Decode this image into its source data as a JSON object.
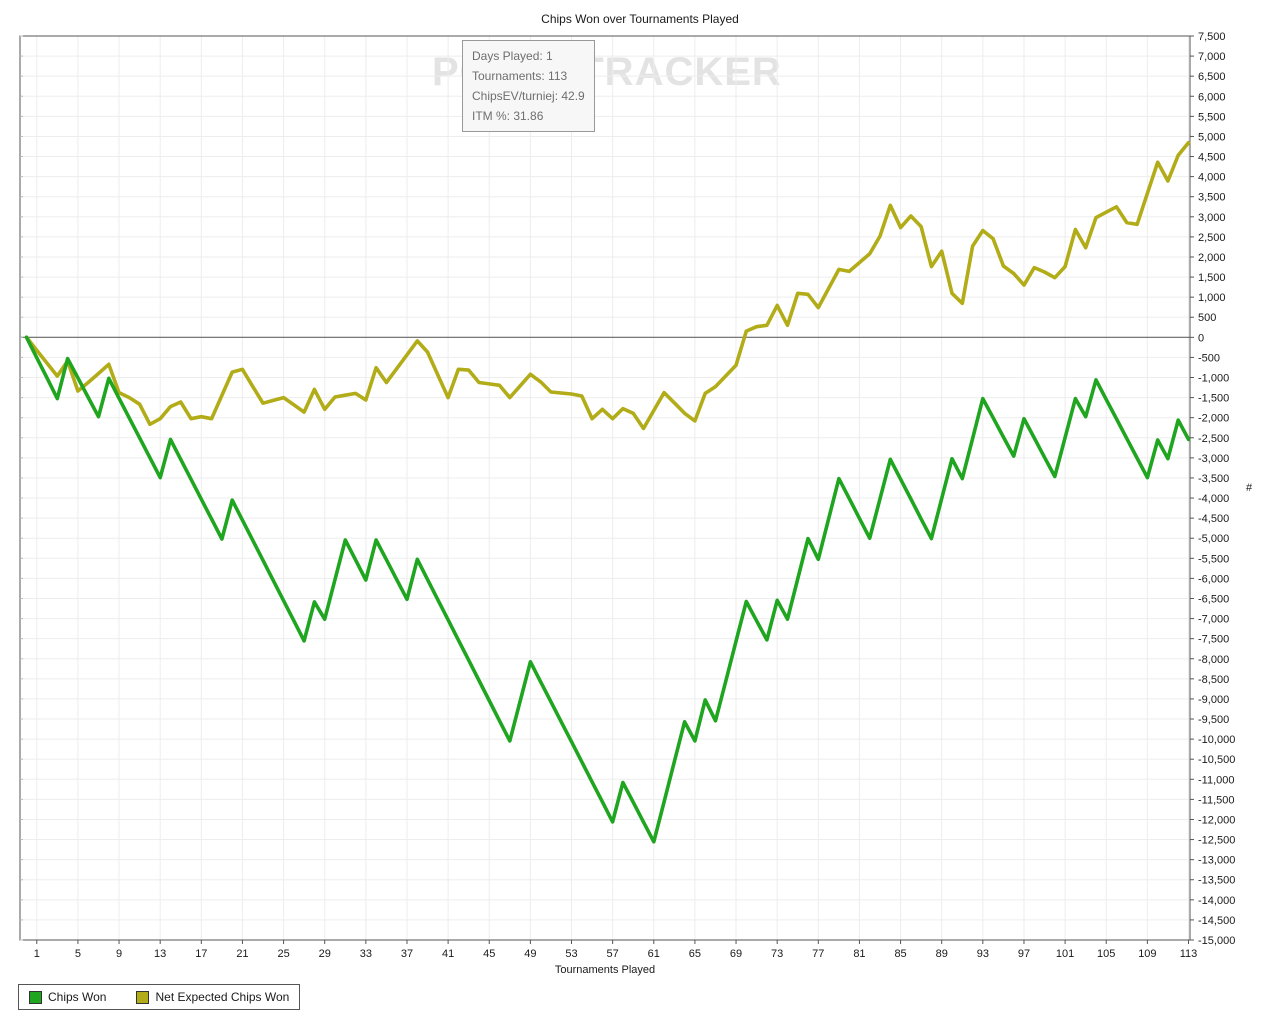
{
  "title": "Chips Won over Tournaments Played",
  "watermark": "POKERTRACKER",
  "tooltip": {
    "lines": [
      "Days Played: 1",
      "Tournaments: 113",
      "ChipsEV/turniej: 42.9",
      "ITM %: 31.86"
    ]
  },
  "axes": {
    "x_label": "Tournaments Played",
    "y_label": "#",
    "x_ticks": [
      1,
      5,
      9,
      13,
      17,
      21,
      25,
      29,
      33,
      37,
      41,
      45,
      49,
      53,
      57,
      61,
      65,
      69,
      73,
      77,
      81,
      85,
      89,
      93,
      97,
      101,
      105,
      109,
      113
    ],
    "y_min": -15000,
    "y_max": 7500,
    "y_step": 500
  },
  "legend": [
    {
      "label": "Chips Won",
      "color": "#1fa51f"
    },
    {
      "label": "Net Expected Chips Won",
      "color": "#b2ac18"
    }
  ],
  "chart_data": {
    "type": "line",
    "title": "Chips Won over Tournaments Played",
    "xlabel": "Tournaments Played",
    "ylabel": "#",
    "xlim": [
      0,
      113
    ],
    "ylim": [
      -15000,
      7500
    ],
    "grid": true,
    "legend_position": "bottom-left",
    "x": [
      0,
      1,
      2,
      3,
      4,
      5,
      6,
      7,
      8,
      9,
      10,
      11,
      12,
      13,
      14,
      15,
      16,
      17,
      18,
      19,
      20,
      21,
      22,
      23,
      24,
      25,
      26,
      27,
      28,
      29,
      30,
      31,
      32,
      33,
      34,
      35,
      36,
      37,
      38,
      39,
      40,
      41,
      42,
      43,
      44,
      45,
      46,
      47,
      48,
      49,
      50,
      51,
      52,
      53,
      54,
      55,
      56,
      57,
      58,
      59,
      60,
      61,
      62,
      63,
      64,
      65,
      66,
      67,
      68,
      69,
      70,
      71,
      72,
      73,
      74,
      75,
      76,
      77,
      78,
      79,
      80,
      81,
      82,
      83,
      84,
      85,
      86,
      87,
      88,
      89,
      90,
      91,
      92,
      93,
      94,
      95,
      96,
      97,
      98,
      99,
      100,
      101,
      102,
      103,
      104,
      105,
      106,
      107,
      108,
      109,
      110,
      111,
      112,
      113
    ],
    "series": [
      {
        "name": "Chips Won",
        "color": "#1fa51f",
        "values": [
          0,
          -510,
          -1015,
          -1525,
          -530,
          -1010,
          -1495,
          -1975,
          -1020,
          -1515,
          -2010,
          -2500,
          -2995,
          -3490,
          -2540,
          -3035,
          -3530,
          -4030,
          -4525,
          -5020,
          -4050,
          -4550,
          -5050,
          -5550,
          -6055,
          -6555,
          -7055,
          -7555,
          -6585,
          -7015,
          -6030,
          -5045,
          -5540,
          -6040,
          -5045,
          -5535,
          -6030,
          -6520,
          -5525,
          -6025,
          -6530,
          -7030,
          -7535,
          -8035,
          -8540,
          -9040,
          -9545,
          -10045,
          -9060,
          -8075,
          -8575,
          -9070,
          -9570,
          -10065,
          -10565,
          -11065,
          -11560,
          -12060,
          -11080,
          -11570,
          -12065,
          -12555,
          -11560,
          -10565,
          -9570,
          -10045,
          -9025,
          -9545,
          -8555,
          -7565,
          -6575,
          -7055,
          -7530,
          -6545,
          -7015,
          -6015,
          -5010,
          -5525,
          -4520,
          -3515,
          -4010,
          -4505,
          -5000,
          -4020,
          -3035,
          -3530,
          -4025,
          -4520,
          -5010,
          -4015,
          -3020,
          -3515,
          -2520,
          -1525,
          -2000,
          -2480,
          -2955,
          -2025,
          -2505,
          -2985,
          -3465,
          -2495,
          -1525,
          -1975,
          -1060,
          -1545,
          -2030,
          -2520,
          -3005,
          -3490,
          -2555,
          -3020,
          -2060,
          -2540
        ]
      },
      {
        "name": "Net Expected Chips Won",
        "color": "#b2ac18",
        "values": [
          0,
          -325,
          -645,
          -965,
          -590,
          -1335,
          -1125,
          -900,
          -670,
          -1375,
          -1500,
          -1665,
          -2165,
          -2025,
          -1725,
          -1610,
          -2025,
          -1975,
          -2025,
          -1445,
          -865,
          -795,
          -1220,
          -1640,
          -1570,
          -1500,
          -1680,
          -1860,
          -1295,
          -1790,
          -1485,
          -1440,
          -1395,
          -1560,
          -755,
          -1125,
          -780,
          -435,
          -90,
          -365,
          -935,
          -1500,
          -795,
          -815,
          -1125,
          -1160,
          -1195,
          -1500,
          -1210,
          -920,
          -1110,
          -1360,
          -1385,
          -1410,
          -1460,
          -2025,
          -1790,
          -2025,
          -1775,
          -1890,
          -2270,
          -1820,
          -1375,
          -1630,
          -1890,
          -2080,
          -1395,
          -1225,
          -960,
          -695,
          155,
          265,
          300,
          795,
          300,
          1095,
          1070,
          740,
          1215,
          1690,
          1640,
          1860,
          2080,
          2520,
          3285,
          2730,
          3020,
          2755,
          1760,
          2145,
          1095,
          845,
          2270,
          2660,
          2455,
          1775,
          1590,
          1300,
          1735,
          1625,
          1485,
          1760,
          2685,
          2230,
          2980,
          3115,
          3250,
          2855,
          2810,
          3585,
          4360,
          3890,
          4530,
          4845
        ]
      }
    ]
  }
}
